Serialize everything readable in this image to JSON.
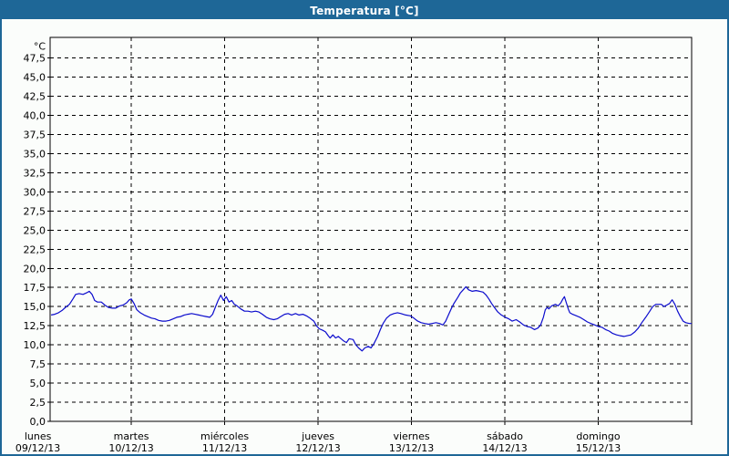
{
  "window": {
    "title": "Temperatura [°C]"
  },
  "colors": {
    "titlebar_bg": "#1e6797",
    "titlebar_text": "#ffffff",
    "frame_border": "#1e6797",
    "chart_bg": "#fbfdfb",
    "plot_border": "#000000",
    "gridline": "#000000",
    "tick_text": "#000000",
    "series_line": "#0b0bcd"
  },
  "chart_data": {
    "type": "line",
    "title": "Temperatura [°C]",
    "ylabel": "°C",
    "ylim": [
      0,
      50.2
    ],
    "y_tick_step": 2.5,
    "y_tick_labels": [
      "0,0",
      "2,5",
      "5,0",
      "7,5",
      "10,0",
      "12,5",
      "15,0",
      "17,5",
      "20,0",
      "22,5",
      "25,0",
      "27,5",
      "30,0",
      "32,5",
      "35,0",
      "37,5",
      "40,0",
      "42,5",
      "45,0",
      "47,5"
    ],
    "grid": "dashed",
    "legend": "none",
    "x_axis": {
      "unit": "hours-from-monday-00",
      "hours_total": 168,
      "days": [
        {
          "name": "lunes",
          "date": "09/12/13"
        },
        {
          "name": "martes",
          "date": "10/12/13"
        },
        {
          "name": "miércoles",
          "date": "11/12/13"
        },
        {
          "name": "jueves",
          "date": "12/12/13"
        },
        {
          "name": "viernes",
          "date": "13/12/13"
        },
        {
          "name": "sábado",
          "date": "14/12/13"
        },
        {
          "name": "domingo",
          "date": "15/12/13"
        }
      ]
    },
    "series": [
      {
        "name": "Temperatura",
        "color": "#0b0bcd",
        "points": [
          [
            3.4,
            13.9
          ],
          [
            4.3,
            14.0
          ],
          [
            5.3,
            14.2
          ],
          [
            6.2,
            14.5
          ],
          [
            7.1,
            14.9
          ],
          [
            8.1,
            15.3
          ],
          [
            9.0,
            16.0
          ],
          [
            9.7,
            16.6
          ],
          [
            10.6,
            16.7
          ],
          [
            11.6,
            16.6
          ],
          [
            12.5,
            16.8
          ],
          [
            13.2,
            17.0
          ],
          [
            13.9,
            16.6
          ],
          [
            14.6,
            15.8
          ],
          [
            15.3,
            15.6
          ],
          [
            16.3,
            15.6
          ],
          [
            17.2,
            15.2
          ],
          [
            18.1,
            14.9
          ],
          [
            19.1,
            14.8
          ],
          [
            20.0,
            14.8
          ],
          [
            21.0,
            15.1
          ],
          [
            21.9,
            15.2
          ],
          [
            22.8,
            15.5
          ],
          [
            23.5,
            15.9
          ],
          [
            24.0,
            16.0
          ],
          [
            24.7,
            15.4
          ],
          [
            25.4,
            14.6
          ],
          [
            26.3,
            14.2
          ],
          [
            27.3,
            13.9
          ],
          [
            28.2,
            13.7
          ],
          [
            29.2,
            13.5
          ],
          [
            30.1,
            13.4
          ],
          [
            31.0,
            13.2
          ],
          [
            32.0,
            13.1
          ],
          [
            32.9,
            13.1
          ],
          [
            33.8,
            13.2
          ],
          [
            34.8,
            13.4
          ],
          [
            35.7,
            13.6
          ],
          [
            36.7,
            13.7
          ],
          [
            37.6,
            13.9
          ],
          [
            38.5,
            14.0
          ],
          [
            39.5,
            14.1
          ],
          [
            40.4,
            14.0
          ],
          [
            41.3,
            13.9
          ],
          [
            42.3,
            13.8
          ],
          [
            43.2,
            13.7
          ],
          [
            44.2,
            13.6
          ],
          [
            44.9,
            14.0
          ],
          [
            45.6,
            14.9
          ],
          [
            46.3,
            15.8
          ],
          [
            47.0,
            16.5
          ],
          [
            47.7,
            15.8
          ],
          [
            48.4,
            16.3
          ],
          [
            49.1,
            15.6
          ],
          [
            49.8,
            15.8
          ],
          [
            50.5,
            15.3
          ],
          [
            51.2,
            15.1
          ],
          [
            52.1,
            14.7
          ],
          [
            53.1,
            14.4
          ],
          [
            54.0,
            14.4
          ],
          [
            54.9,
            14.3
          ],
          [
            55.9,
            14.4
          ],
          [
            56.8,
            14.3
          ],
          [
            57.7,
            14.0
          ],
          [
            58.7,
            13.6
          ],
          [
            59.6,
            13.4
          ],
          [
            60.6,
            13.3
          ],
          [
            61.5,
            13.4
          ],
          [
            62.4,
            13.7
          ],
          [
            63.4,
            14.0
          ],
          [
            64.3,
            14.1
          ],
          [
            65.2,
            13.9
          ],
          [
            66.2,
            14.1
          ],
          [
            67.1,
            13.9
          ],
          [
            68.1,
            14.0
          ],
          [
            69.0,
            13.8
          ],
          [
            69.9,
            13.5
          ],
          [
            70.9,
            13.1
          ],
          [
            71.6,
            12.5
          ],
          [
            72.3,
            12.1
          ],
          [
            73.2,
            11.9
          ],
          [
            73.9,
            11.7
          ],
          [
            74.6,
            11.2
          ],
          [
            75.1,
            10.9
          ],
          [
            75.8,
            11.3
          ],
          [
            76.5,
            10.9
          ],
          [
            77.2,
            11.1
          ],
          [
            77.9,
            10.8
          ],
          [
            78.6,
            10.5
          ],
          [
            79.3,
            10.3
          ],
          [
            80.0,
            10.8
          ],
          [
            81.0,
            10.7
          ],
          [
            81.7,
            10.0
          ],
          [
            82.4,
            9.6
          ],
          [
            83.3,
            9.2
          ],
          [
            84.0,
            9.6
          ],
          [
            84.9,
            9.8
          ],
          [
            85.6,
            9.6
          ],
          [
            86.3,
            10.1
          ],
          [
            87.3,
            11.1
          ],
          [
            88.0,
            12.0
          ],
          [
            88.7,
            12.8
          ],
          [
            89.6,
            13.5
          ],
          [
            90.5,
            13.9
          ],
          [
            91.5,
            14.1
          ],
          [
            92.4,
            14.2
          ],
          [
            93.3,
            14.1
          ],
          [
            94.5,
            13.9
          ],
          [
            95.7,
            13.8
          ],
          [
            96.6,
            13.5
          ],
          [
            97.6,
            13.1
          ],
          [
            98.5,
            12.9
          ],
          [
            99.4,
            12.8
          ],
          [
            100.4,
            12.7
          ],
          [
            101.3,
            12.8
          ],
          [
            102.3,
            12.9
          ],
          [
            103.2,
            12.8
          ],
          [
            104.1,
            12.6
          ],
          [
            104.8,
            13.1
          ],
          [
            105.5,
            13.9
          ],
          [
            106.2,
            14.7
          ],
          [
            106.9,
            15.4
          ],
          [
            107.9,
            16.2
          ],
          [
            108.6,
            16.8
          ],
          [
            109.3,
            17.2
          ],
          [
            110.0,
            17.6
          ],
          [
            110.7,
            17.2
          ],
          [
            111.6,
            17.0
          ],
          [
            112.6,
            17.1
          ],
          [
            113.5,
            17.0
          ],
          [
            114.4,
            16.9
          ],
          [
            115.2,
            16.5
          ],
          [
            115.9,
            16.0
          ],
          [
            116.6,
            15.4
          ],
          [
            117.3,
            14.9
          ],
          [
            118.2,
            14.3
          ],
          [
            119.1,
            13.9
          ],
          [
            120.1,
            13.6
          ],
          [
            121.0,
            13.4
          ],
          [
            121.9,
            13.1
          ],
          [
            122.9,
            13.3
          ],
          [
            123.8,
            13.0
          ],
          [
            124.8,
            12.6
          ],
          [
            125.7,
            12.4
          ],
          [
            126.6,
            12.3
          ],
          [
            127.6,
            12.0
          ],
          [
            128.5,
            12.2
          ],
          [
            129.2,
            12.6
          ],
          [
            129.9,
            13.6
          ],
          [
            130.4,
            14.6
          ],
          [
            130.9,
            14.9
          ],
          [
            131.3,
            14.7
          ],
          [
            132.0,
            15.1
          ],
          [
            133.0,
            15.3
          ],
          [
            133.7,
            15.1
          ],
          [
            134.4,
            15.5
          ],
          [
            134.9,
            16.0
          ],
          [
            135.3,
            16.3
          ],
          [
            135.8,
            15.5
          ],
          [
            136.3,
            14.7
          ],
          [
            136.7,
            14.2
          ],
          [
            137.4,
            14.0
          ],
          [
            138.4,
            13.8
          ],
          [
            139.3,
            13.6
          ],
          [
            140.3,
            13.3
          ],
          [
            141.2,
            13.0
          ],
          [
            142.1,
            12.8
          ],
          [
            143.1,
            12.6
          ],
          [
            144.0,
            12.4
          ],
          [
            144.9,
            12.3
          ],
          [
            145.9,
            12.0
          ],
          [
            146.8,
            11.8
          ],
          [
            147.7,
            11.5
          ],
          [
            148.7,
            11.3
          ],
          [
            149.6,
            11.2
          ],
          [
            150.6,
            11.1
          ],
          [
            151.5,
            11.2
          ],
          [
            152.4,
            11.3
          ],
          [
            153.4,
            11.7
          ],
          [
            154.3,
            12.2
          ],
          [
            155.2,
            12.9
          ],
          [
            156.2,
            13.6
          ],
          [
            157.1,
            14.3
          ],
          [
            158.0,
            15.0
          ],
          [
            158.8,
            15.3
          ],
          [
            159.5,
            15.3
          ],
          [
            160.2,
            15.3
          ],
          [
            160.9,
            15.0
          ],
          [
            161.6,
            15.2
          ],
          [
            162.3,
            15.4
          ],
          [
            163.0,
            15.9
          ],
          [
            163.7,
            15.3
          ],
          [
            164.4,
            14.4
          ],
          [
            165.1,
            13.7
          ],
          [
            165.8,
            13.1
          ],
          [
            166.5,
            12.9
          ],
          [
            167.4,
            12.8
          ],
          [
            168.4,
            12.8
          ]
        ]
      }
    ]
  }
}
